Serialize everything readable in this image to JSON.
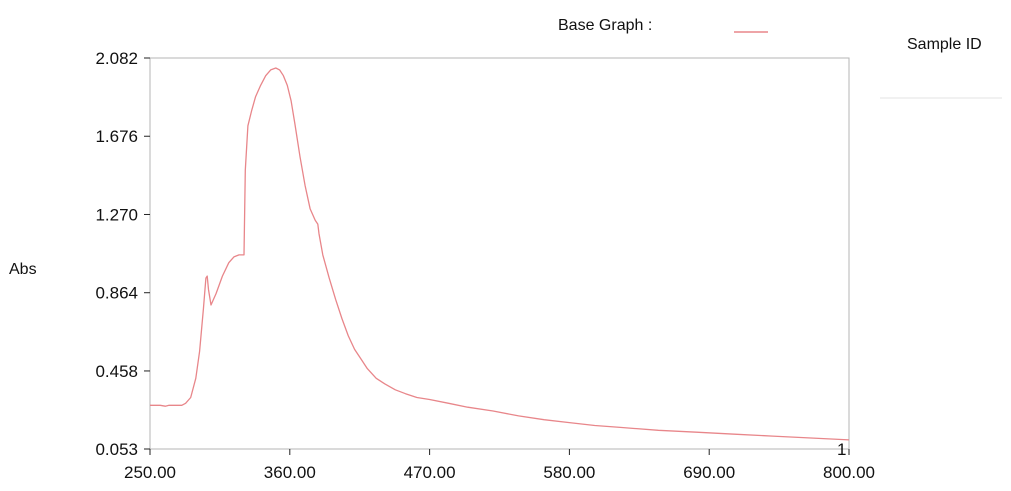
{
  "legend": {
    "label": "Base Graph :",
    "sample_id_label": "Sample ID"
  },
  "colors": {
    "series": "#e8868a",
    "frame": "#b5b5b5",
    "tick": "#222222",
    "sample_id_bar": "#f1f1f1"
  },
  "chart_data": {
    "type": "line",
    "title": "",
    "xlabel": "",
    "ylabel": "Abs",
    "xlim": [
      250,
      800
    ],
    "ylim": [
      0.053,
      2.082
    ],
    "x_ticks": [
      "250.00",
      "360.00",
      "470.00",
      "580.00",
      "690.00",
      "800.00"
    ],
    "y_ticks": [
      "2.082",
      "1.676",
      "1.270",
      "0.864",
      "0.458",
      "0.053"
    ],
    "grid": false,
    "legend_placement": "top",
    "series": [
      {
        "marker_label": "1",
        "x": [
          250,
          258,
          262,
          265,
          270,
          275,
          278,
          282,
          286,
          289,
          292,
          294,
          295,
          296,
          298,
          302,
          307,
          312,
          316,
          320,
          324,
          325,
          327,
          330,
          333,
          337,
          341,
          345,
          349,
          352,
          355,
          358,
          361,
          364,
          368,
          372,
          376,
          380,
          382,
          383,
          386,
          391,
          396,
          401,
          406,
          411,
          416,
          421,
          428,
          435,
          443,
          451,
          460,
          470,
          485,
          500,
          520,
          540,
          560,
          580,
          600,
          620,
          650,
          680,
          710,
          740,
          770,
          800
        ],
        "y": [
          0.28,
          0.28,
          0.275,
          0.28,
          0.28,
          0.28,
          0.29,
          0.32,
          0.42,
          0.56,
          0.78,
          0.94,
          0.95,
          0.88,
          0.8,
          0.86,
          0.95,
          1.02,
          1.05,
          1.06,
          1.06,
          1.5,
          1.73,
          1.81,
          1.88,
          1.94,
          1.99,
          2.02,
          2.03,
          2.02,
          1.99,
          1.94,
          1.86,
          1.74,
          1.57,
          1.42,
          1.3,
          1.24,
          1.22,
          1.17,
          1.06,
          0.94,
          0.83,
          0.73,
          0.64,
          0.57,
          0.52,
          0.47,
          0.42,
          0.39,
          0.36,
          0.34,
          0.32,
          0.31,
          0.29,
          0.27,
          0.25,
          0.225,
          0.205,
          0.19,
          0.175,
          0.165,
          0.15,
          0.14,
          0.13,
          0.12,
          0.11,
          0.1
        ]
      }
    ]
  }
}
